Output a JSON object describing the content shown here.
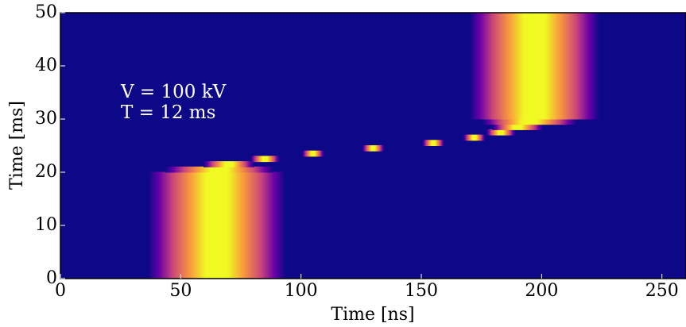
{
  "chart_data": {
    "type": "heatmap",
    "xlabel": "Time [ns]",
    "ylabel": "Time [ms]",
    "xlim": [
      0,
      260
    ],
    "ylim": [
      0,
      50
    ],
    "xticks": [
      0,
      50,
      100,
      150,
      200,
      250
    ],
    "yticks": [
      0,
      10,
      20,
      30,
      40,
      50
    ],
    "background": "#0d0887",
    "annotations": [
      "V = 100 kV",
      "T = 12 ms"
    ],
    "beam": {
      "time_ms": [
        0,
        19,
        20,
        21,
        22,
        23,
        24,
        25,
        26,
        27,
        28,
        29,
        30,
        50
      ],
      "center_ns": [
        65,
        65,
        66,
        70,
        85,
        105,
        130,
        155,
        172,
        183,
        190,
        195,
        197,
        197
      ],
      "width_ns": [
        38,
        38,
        30,
        14,
        8,
        6,
        6,
        6,
        6,
        8,
        14,
        26,
        36,
        36
      ]
    }
  }
}
